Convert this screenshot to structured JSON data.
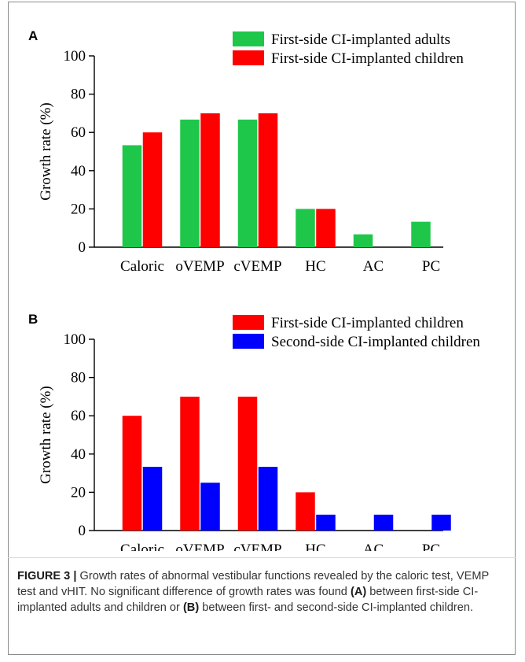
{
  "colors": {
    "adults": "#1ec74a",
    "children_first": "#ff0000",
    "children_second": "#0000ff"
  },
  "caption": {
    "label": "FIGURE 3 |",
    "text1": " Growth rates of abnormal vestibular functions revealed by the caloric test, VEMP test and vHIT. No significant difference of growth rates was found ",
    "ref_a": "(A)",
    "text2": " between first-side CI-implanted adults and children or ",
    "ref_b": "(B)",
    "text3": " between first- and second-side CI-implanted children."
  },
  "chart_data": [
    {
      "panel": "A",
      "type": "bar",
      "categories": [
        "Caloric",
        "oVEMP",
        "cVEMP",
        "HC",
        "AC",
        "PC"
      ],
      "ylabel": "Growth rate (%)",
      "ylim": [
        0,
        100
      ],
      "yticks": [
        0,
        20,
        40,
        60,
        80,
        100
      ],
      "legend_position": "top-right",
      "series": [
        {
          "name": "First-side CI-implanted adults",
          "color": "#1ec74a",
          "values": [
            53.3,
            66.7,
            66.7,
            20,
            6.7,
            13.3
          ]
        },
        {
          "name": "First-side CI-implanted children",
          "color": "#ff0000",
          "values": [
            60,
            70,
            70,
            20,
            0,
            0
          ]
        }
      ]
    },
    {
      "panel": "B",
      "type": "bar",
      "categories": [
        "Caloric",
        "oVEMP",
        "cVEMP",
        "HC",
        "AC",
        "PC"
      ],
      "ylabel": "Growth rate (%)",
      "ylim": [
        0,
        100
      ],
      "yticks": [
        0,
        20,
        40,
        60,
        80,
        100
      ],
      "legend_position": "top-right",
      "series": [
        {
          "name": "First-side CI-implanted children",
          "color": "#ff0000",
          "values": [
            60,
            70,
            70,
            20,
            0,
            0
          ]
        },
        {
          "name": "Second-side CI-implanted children",
          "color": "#0000ff",
          "values": [
            33.3,
            25,
            33.3,
            8.3,
            8.3,
            8.3
          ]
        }
      ]
    }
  ]
}
